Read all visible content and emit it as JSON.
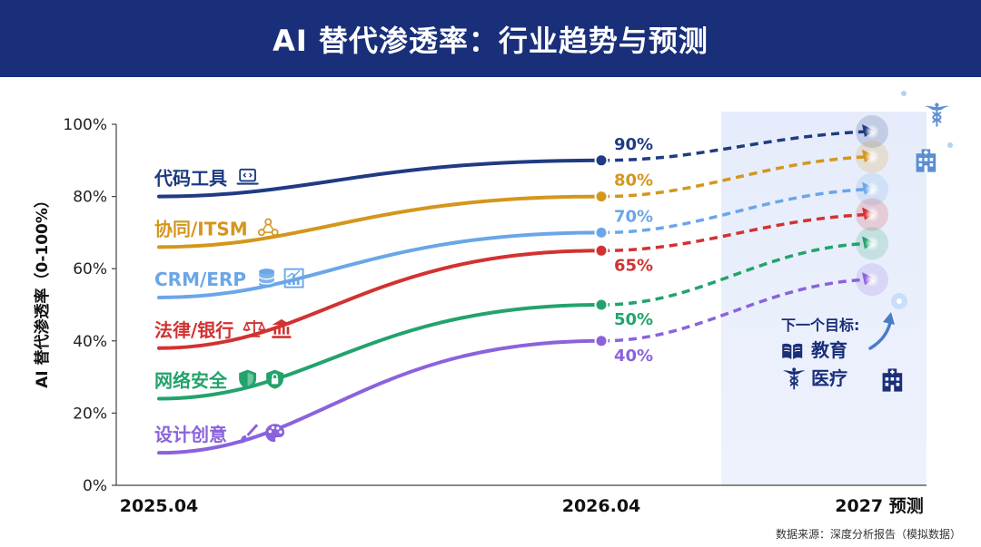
{
  "header": {
    "title": "AI 替代渗透率：行业趋势与预测"
  },
  "chart_data": {
    "type": "line",
    "title": "AI 替代渗透率：行业趋势与预测",
    "ylabel": "AI 替代渗透率（0-100%）",
    "xlabel": "",
    "ylim": [
      0,
      100
    ],
    "yticks": [
      "0%",
      "20%",
      "40%",
      "60%",
      "80%",
      "100%"
    ],
    "categories": [
      "2025.04",
      "2026.04",
      "2027 预测"
    ],
    "forecast_region": "2027 预测",
    "series": [
      {
        "name": "代码工具",
        "color": "#1f3b82",
        "icon": "laptop-code-icon",
        "values": [
          80,
          90,
          98
        ],
        "label_2026": "90%"
      },
      {
        "name": "协同/ITSM",
        "color": "#d4961c",
        "icon": "team-network-icon",
        "values": [
          66,
          80,
          91
        ],
        "label_2026": "80%"
      },
      {
        "name": "CRM/ERP",
        "color": "#6aa6e8",
        "icon": "database-chart-icon",
        "values": [
          52,
          70,
          82
        ],
        "label_2026": "70%"
      },
      {
        "name": "法律/银行",
        "color": "#d23232",
        "icon": "scales-bank-icon",
        "values": [
          38,
          65,
          75
        ],
        "label_2026": "65%"
      },
      {
        "name": "网络安全",
        "color": "#23a36c",
        "icon": "shield-lock-icon",
        "values": [
          24,
          50,
          67
        ],
        "label_2026": "50%"
      },
      {
        "name": "设计创意",
        "color": "#8a63dc",
        "icon": "brush-palette-icon",
        "values": [
          9,
          40,
          57
        ],
        "label_2026": "40%"
      }
    ],
    "annotation": {
      "title": "下一个目标:",
      "items": [
        {
          "label": "教育",
          "icon": "book-icon"
        },
        {
          "label": "医疗",
          "icon": "caduceus-icon"
        }
      ]
    }
  },
  "footer": {
    "source": "数据来源：深度分析报告（模拟数据）"
  }
}
